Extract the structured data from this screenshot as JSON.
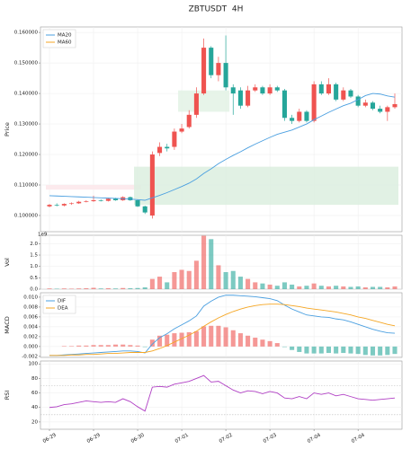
{
  "chart_data": [
    {
      "type": "candlestick",
      "title": "ZBTUSDT  4H",
      "ylabel": "Price",
      "categories": [
        "06-29",
        null,
        null,
        null,
        null,
        null,
        "06-29",
        null,
        null,
        null,
        null,
        null,
        "06-30",
        null,
        null,
        null,
        null,
        null,
        "07-01",
        null,
        null,
        null,
        null,
        null,
        "07-02",
        null,
        null,
        null,
        null,
        null,
        "07-03",
        null,
        null,
        null,
        null,
        null,
        "07-04",
        null,
        null,
        null,
        null,
        null,
        "07-04",
        null,
        null,
        null,
        null,
        null
      ],
      "open": [
        0.103,
        0.1035,
        0.1033,
        0.1038,
        0.104,
        0.1045,
        0.1047,
        0.105,
        0.1048,
        0.1055,
        0.105,
        0.106,
        0.105,
        0.103,
        0.1,
        0.1205,
        0.1225,
        0.1225,
        0.1275,
        0.129,
        0.133,
        0.14,
        0.155,
        0.146,
        0.15,
        0.142,
        0.141,
        0.136,
        0.141,
        0.142,
        0.14,
        0.142,
        0.141,
        0.132,
        0.131,
        0.134,
        0.131,
        0.143,
        0.14,
        0.143,
        0.138,
        0.141,
        0.139,
        0.136,
        0.137,
        0.135,
        0.134,
        0.1355
      ],
      "high": [
        0.1038,
        0.104,
        0.104,
        0.1043,
        0.1048,
        0.105,
        0.1065,
        0.1053,
        0.1058,
        0.1058,
        0.1063,
        0.1062,
        0.1052,
        0.1032,
        0.121,
        0.124,
        0.1235,
        0.1285,
        0.13,
        0.1345,
        0.142,
        0.158,
        0.1555,
        0.152,
        0.159,
        0.143,
        0.142,
        0.1425,
        0.143,
        0.1425,
        0.143,
        0.1425,
        0.1415,
        0.133,
        0.135,
        0.1345,
        0.144,
        0.144,
        0.145,
        0.1435,
        0.142,
        0.1415,
        0.1395,
        0.138,
        0.1375,
        0.136,
        0.136,
        0.14
      ],
      "low": [
        0.1027,
        0.103,
        0.103,
        0.1035,
        0.1038,
        0.1043,
        0.1045,
        0.1046,
        0.1046,
        0.1048,
        0.1048,
        0.1048,
        0.1028,
        0.1005,
        0.099,
        0.1195,
        0.121,
        0.1215,
        0.127,
        0.1285,
        0.132,
        0.1395,
        0.145,
        0.144,
        0.141,
        0.133,
        0.135,
        0.1355,
        0.1405,
        0.1395,
        0.1395,
        0.1405,
        0.131,
        0.13,
        0.1305,
        0.1305,
        0.1305,
        0.1395,
        0.1395,
        0.1375,
        0.1375,
        0.1385,
        0.1355,
        0.1355,
        0.1345,
        0.1335,
        0.131,
        0.135
      ],
      "close": [
        0.1035,
        0.1033,
        0.1038,
        0.104,
        0.1045,
        0.1047,
        0.105,
        0.1048,
        0.1055,
        0.105,
        0.106,
        0.105,
        0.103,
        0.101,
        0.12,
        0.1225,
        0.122,
        0.1275,
        0.1285,
        0.133,
        0.14,
        0.155,
        0.146,
        0.15,
        0.142,
        0.14,
        0.136,
        0.141,
        0.142,
        0.14,
        0.142,
        0.141,
        0.132,
        0.131,
        0.134,
        0.131,
        0.143,
        0.14,
        0.143,
        0.138,
        0.141,
        0.139,
        0.136,
        0.137,
        0.135,
        0.134,
        0.1355,
        0.1365
      ],
      "up_color": "#ef5350",
      "down_color": "#26a69a",
      "series": [
        {
          "name": "MA20",
          "color": "#4a9fe0",
          "values": [
            0.1065,
            0.1064,
            0.1063,
            0.1062,
            0.1061,
            0.106,
            0.1059,
            0.1058,
            0.1057,
            0.1056,
            0.1055,
            0.1054,
            0.1052,
            0.105,
            0.1058,
            0.1066,
            0.1075,
            0.1085,
            0.1095,
            0.1106,
            0.112,
            0.1138,
            0.1153,
            0.117,
            0.1184,
            0.1197,
            0.1209,
            0.1222,
            0.1234,
            0.1245,
            0.1256,
            0.1266,
            0.1273,
            0.128,
            0.129,
            0.13,
            0.1314,
            0.1326,
            0.1338,
            0.1349,
            0.136,
            0.1368,
            0.138,
            0.1393,
            0.14,
            0.1398,
            0.1392,
            0.1388
          ]
        },
        {
          "name": "MA60",
          "color": "#f5a623",
          "values": [
            null,
            null,
            null,
            null,
            null,
            null,
            null,
            null,
            null,
            null,
            null,
            null,
            null,
            null,
            null,
            null,
            null,
            null,
            null,
            null,
            null,
            null,
            null,
            null,
            null,
            null,
            null,
            null,
            null,
            null,
            null,
            null,
            null,
            null,
            null,
            null,
            null,
            null,
            null,
            null,
            null,
            null,
            null,
            null,
            null,
            null,
            null,
            null
          ]
        }
      ],
      "zones": [
        {
          "x": [
            0,
            12
          ],
          "y": [
            0.1085,
            0.11
          ],
          "color": "#fbe6ea"
        },
        {
          "x": [
            12,
            47
          ],
          "y": [
            0.1035,
            0.116
          ],
          "color": "#dcefdf"
        },
        {
          "x": [
            18,
            24
          ],
          "y": [
            0.134,
            0.141
          ],
          "color": "#e3f2e5"
        }
      ],
      "ylim": [
        0.0947,
        0.1618
      ],
      "yticks": [
        {
          "value": 0.1,
          "label": "0.100000"
        },
        {
          "value": 0.11,
          "label": "0.110000"
        },
        {
          "value": 0.12,
          "label": "0.120000"
        },
        {
          "value": 0.13,
          "label": "0.130000"
        },
        {
          "value": 0.14,
          "label": "0.140000"
        },
        {
          "value": 0.15,
          "label": "0.150000"
        },
        {
          "value": 0.16,
          "label": "0.160000"
        }
      ],
      "legend": "upper left",
      "grid": true
    },
    {
      "type": "bar",
      "ylabel": "Vol",
      "offset_label": "1e9",
      "values": [
        0.03,
        0.02,
        0.03,
        0.02,
        0.03,
        0.04,
        0.06,
        0.03,
        0.04,
        0.03,
        0.05,
        0.04,
        0.05,
        0.08,
        0.45,
        0.55,
        0.3,
        0.75,
        0.85,
        0.8,
        1.25,
        2.35,
        2.2,
        1.05,
        0.75,
        0.8,
        0.55,
        0.45,
        0.3,
        0.25,
        0.2,
        0.15,
        0.3,
        0.2,
        0.12,
        0.15,
        0.25,
        0.15,
        0.12,
        0.15,
        0.12,
        0.1,
        0.12,
        0.08,
        0.1,
        0.1,
        0.08,
        0.12
      ],
      "ylim": [
        0,
        2.37
      ],
      "yticks": [
        {
          "value": 0,
          "label": "0.0"
        },
        {
          "value": 0.5,
          "label": "0.5"
        },
        {
          "value": 1,
          "label": "1.0"
        },
        {
          "value": 1.5,
          "label": "1.5"
        },
        {
          "value": 2,
          "label": "2.0"
        }
      ],
      "grid": true
    },
    {
      "type": "macd",
      "ylabel": "MACD",
      "series": [
        {
          "name": "DIF",
          "color": "#4a9fe0",
          "values": [
            -0.0018,
            -0.0018,
            -0.0017,
            -0.0016,
            -0.0015,
            -0.0014,
            -0.0013,
            -0.0012,
            -0.0011,
            -0.001,
            -0.0009,
            -0.0009,
            -0.001,
            -0.0013,
            0.0005,
            0.0018,
            0.0026,
            0.0036,
            0.0044,
            0.0052,
            0.0062,
            0.0082,
            0.0092,
            0.01,
            0.0104,
            0.0104,
            0.0103,
            0.0102,
            0.0101,
            0.0099,
            0.0097,
            0.0093,
            0.0084,
            0.0076,
            0.007,
            0.0064,
            0.0062,
            0.006,
            0.0059,
            0.0056,
            0.0054,
            0.005,
            0.0045,
            0.004,
            0.0035,
            0.0031,
            0.0028,
            0.0027
          ]
        },
        {
          "name": "DEA",
          "color": "#f5a623",
          "values": [
            -0.0018,
            -0.0018,
            -0.0018,
            -0.0017,
            -0.0017,
            -0.0016,
            -0.0016,
            -0.0015,
            -0.0014,
            -0.0014,
            -0.0013,
            -0.0012,
            -0.0012,
            -0.0012,
            -0.0009,
            -0.0004,
            0.0002,
            0.0009,
            0.0016,
            0.0023,
            0.0031,
            0.0041,
            0.005,
            0.0058,
            0.0065,
            0.0071,
            0.0076,
            0.008,
            0.0083,
            0.0085,
            0.0086,
            0.0086,
            0.0085,
            0.0083,
            0.0081,
            0.0078,
            0.0076,
            0.0074,
            0.0072,
            0.007,
            0.0067,
            0.0064,
            0.006,
            0.0057,
            0.0053,
            0.0049,
            0.0045,
            0.0042
          ]
        }
      ],
      "histogram": [
        0,
        0,
        0.0001,
        0.0001,
        0.0002,
        0.0002,
        0.0003,
        0.0003,
        0.0003,
        0.0004,
        0.0004,
        0.0003,
        0.0002,
        -0.0001,
        0.0014,
        0.0022,
        0.0024,
        0.0027,
        0.0028,
        0.0029,
        0.0031,
        0.0041,
        0.0042,
        0.0042,
        0.0039,
        0.0033,
        0.0027,
        0.0022,
        0.0018,
        0.0014,
        0.0011,
        0.0007,
        -0.0001,
        -0.0007,
        -0.0011,
        -0.0014,
        -0.0014,
        -0.0014,
        -0.0013,
        -0.0014,
        -0.0013,
        -0.0014,
        -0.0015,
        -0.0017,
        -0.0018,
        -0.0018,
        -0.0017,
        -0.0015
      ],
      "ylim": [
        -0.0022,
        0.0109
      ],
      "yticks": [
        {
          "value": -0.002,
          "label": "-0.002"
        },
        {
          "value": 0,
          "label": "0.000"
        },
        {
          "value": 0.002,
          "label": "0.002"
        },
        {
          "value": 0.004,
          "label": "0.004"
        },
        {
          "value": 0.006,
          "label": "0.006"
        },
        {
          "value": 0.008,
          "label": "0.008"
        },
        {
          "value": 0.01,
          "label": "0.010"
        }
      ],
      "legend": "upper left",
      "grid": true
    },
    {
      "type": "line",
      "ylabel": "RSI",
      "color": "#b03fc4",
      "values": [
        40,
        41,
        44,
        45,
        47,
        49,
        48,
        47,
        48,
        47,
        52,
        48,
        41,
        35,
        68,
        69,
        68,
        72,
        74,
        76,
        80,
        84,
        75,
        76,
        70,
        64,
        60,
        63,
        62,
        59,
        62,
        60,
        53,
        52,
        55,
        52,
        60,
        58,
        60,
        56,
        58,
        55,
        52,
        51,
        50,
        51,
        52,
        53
      ],
      "ref_lines": [
        30,
        70
      ],
      "ylim": [
        10,
        104
      ],
      "yticks": [
        20,
        40,
        60,
        80,
        100
      ],
      "grid": true
    }
  ]
}
